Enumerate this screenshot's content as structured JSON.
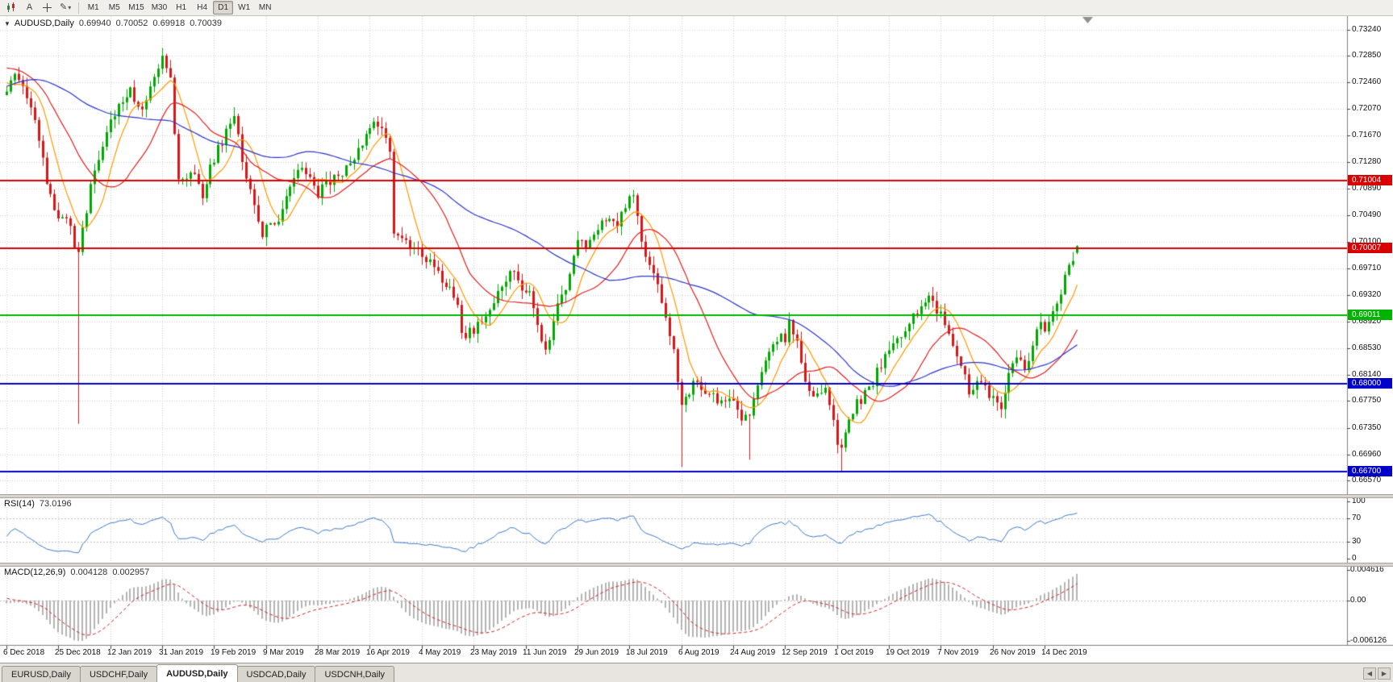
{
  "toolbar": {
    "text_tool_label": "A",
    "pencil_glyph": "✎",
    "caret_glyph": "▾",
    "timeframes": [
      "M1",
      "M5",
      "M15",
      "M30",
      "H1",
      "H4",
      "D1",
      "W1",
      "MN"
    ],
    "active_timeframe": "D1"
  },
  "chart": {
    "symbol_period": "AUDUSD,Daily",
    "collapse_glyph": "▼",
    "ohlc": {
      "open": "0.69940",
      "high": "0.70052",
      "low": "0.69918",
      "close": "0.70039"
    }
  },
  "indicators": {
    "rsi": {
      "label": "RSI(14)",
      "value": "73.0196",
      "scale_labels": [
        "100",
        "70",
        "30",
        "0"
      ],
      "levels": [
        70,
        30
      ],
      "color": "#3b78c8"
    },
    "macd": {
      "label": "MACD(12,26,9)",
      "value_main": "0.004128",
      "value_signal": "0.002957",
      "scale_labels": [
        "0.004616",
        "0.00",
        "-0.006126"
      ],
      "histogram_color": "#b4b4b4",
      "signal_color": "#d42020"
    }
  },
  "price_scale": {
    "labels": [
      "0.73240",
      "0.72850",
      "0.72460",
      "0.72070",
      "0.71670",
      "0.71280",
      "0.70890",
      "0.70490",
      "0.70100",
      "0.69710",
      "0.69320",
      "0.68920",
      "0.68530",
      "0.68140",
      "0.67750",
      "0.67350",
      "0.66960",
      "0.66570"
    ]
  },
  "hlines": [
    {
      "value": 0.71004,
      "label": "0.71004",
      "color": "#d80000"
    },
    {
      "value": 0.70007,
      "label": "0.70007",
      "color": "#d80000"
    },
    {
      "value": 0.69011,
      "label": "0.69011",
      "color": "#00b300"
    },
    {
      "value": 0.68,
      "label": "0.68000",
      "color": "#0000c8"
    },
    {
      "value": 0.667,
      "label": "0.66700",
      "color": "#0000c8"
    }
  ],
  "tabs": {
    "items": [
      "EURUSD,Daily",
      "USDCHF,Daily",
      "AUDUSD,Daily",
      "USDCAD,Daily",
      "USDCNH,Daily"
    ],
    "active": "AUDUSD,Daily"
  },
  "glyphs": {
    "scroll_left": "◀",
    "scroll_right": "▶"
  },
  "chart_data": {
    "type": "candlestick",
    "symbol": "AUDUSD",
    "timeframe": "Daily",
    "title": "AUDUSD,Daily 0.69940 0.70052 0.69918 0.70039",
    "ylim": [
      0.6637,
      0.7344
    ],
    "visible_candles": 269,
    "candles_per_tick": 13,
    "up_color": "#00a800",
    "down_color": "#d81818",
    "x_ticks": [
      {
        "i": 0,
        "label": "6 Dec 2018"
      },
      {
        "i": 13,
        "label": "25 Dec 2018"
      },
      {
        "i": 26,
        "label": "12 Jan 2019"
      },
      {
        "i": 39,
        "label": "31 Jan 2019"
      },
      {
        "i": 52,
        "label": "19 Feb 2019"
      },
      {
        "i": 65,
        "label": "9 Mar 2019"
      },
      {
        "i": 78,
        "label": "28 Mar 2019"
      },
      {
        "i": 91,
        "label": "16 Apr 2019"
      },
      {
        "i": 104,
        "label": "4 May 2019"
      },
      {
        "i": 117,
        "label": "23 May 2019"
      },
      {
        "i": 130,
        "label": "11 Jun 2019"
      },
      {
        "i": 143,
        "label": "29 Jun 2019"
      },
      {
        "i": 156,
        "label": "18 Jul 2019"
      },
      {
        "i": 169,
        "label": "6 Aug 2019"
      },
      {
        "i": 182,
        "label": "24 Aug 2019"
      },
      {
        "i": 195,
        "label": "12 Sep 2019"
      },
      {
        "i": 208,
        "label": "1 Oct 2019"
      },
      {
        "i": 221,
        "label": "19 Oct 2019"
      },
      {
        "i": 234,
        "label": "7 Nov 2019"
      },
      {
        "i": 247,
        "label": "26 Nov 2019"
      },
      {
        "i": 260,
        "label": "14 Dec 2019"
      }
    ],
    "preroll_anchors": [
      [
        -60,
        0.708
      ],
      [
        -50,
        0.716
      ],
      [
        -40,
        0.722
      ],
      [
        -30,
        0.729
      ],
      [
        -22,
        0.725
      ],
      [
        -15,
        0.73
      ],
      [
        -8,
        0.727
      ],
      [
        -1,
        0.7235
      ]
    ],
    "close_anchors": [
      [
        0,
        0.7225
      ],
      [
        2,
        0.7262
      ],
      [
        4,
        0.724
      ],
      [
        6,
        0.7205
      ],
      [
        8,
        0.7165
      ],
      [
        10,
        0.709
      ],
      [
        13,
        0.7048
      ],
      [
        15,
        0.7052
      ],
      [
        17,
        0.7005
      ],
      [
        18,
        0.6995
      ],
      [
        19,
        0.703
      ],
      [
        21,
        0.709
      ],
      [
        24,
        0.715
      ],
      [
        26,
        0.7185
      ],
      [
        28,
        0.721
      ],
      [
        31,
        0.7232
      ],
      [
        33,
        0.7205
      ],
      [
        35,
        0.7218
      ],
      [
        37,
        0.7248
      ],
      [
        39,
        0.729
      ],
      [
        41,
        0.7255
      ],
      [
        43,
        0.7095
      ],
      [
        46,
        0.7115
      ],
      [
        49,
        0.708
      ],
      [
        52,
        0.7135
      ],
      [
        55,
        0.717
      ],
      [
        57,
        0.7195
      ],
      [
        59,
        0.713
      ],
      [
        61,
        0.709
      ],
      [
        64,
        0.7025
      ],
      [
        66,
        0.704
      ],
      [
        68,
        0.7045
      ],
      [
        71,
        0.709
      ],
      [
        74,
        0.712
      ],
      [
        76,
        0.71
      ],
      [
        78,
        0.7082
      ],
      [
        81,
        0.71
      ],
      [
        84,
        0.7115
      ],
      [
        87,
        0.7135
      ],
      [
        90,
        0.7165
      ],
      [
        92,
        0.7195
      ],
      [
        94,
        0.7175
      ],
      [
        96,
        0.715
      ],
      [
        97,
        0.702
      ],
      [
        100,
        0.7005
      ],
      [
        103,
        0.6995
      ],
      [
        106,
        0.698
      ],
      [
        109,
        0.6955
      ],
      [
        111,
        0.694
      ],
      [
        113,
        0.692
      ],
      [
        114,
        0.6872
      ],
      [
        117,
        0.688
      ],
      [
        120,
        0.6905
      ],
      [
        123,
        0.693
      ],
      [
        126,
        0.6965
      ],
      [
        129,
        0.6945
      ],
      [
        131,
        0.693
      ],
      [
        133,
        0.688
      ],
      [
        135,
        0.6845
      ],
      [
        138,
        0.692
      ],
      [
        140,
        0.6945
      ],
      [
        143,
        0.7015
      ],
      [
        145,
        0.7
      ],
      [
        148,
        0.703
      ],
      [
        151,
        0.705
      ],
      [
        153,
        0.704
      ],
      [
        156,
        0.707
      ],
      [
        157,
        0.7075
      ],
      [
        159,
        0.7015
      ],
      [
        161,
        0.6975
      ],
      [
        163,
        0.695
      ],
      [
        165,
        0.6905
      ],
      [
        167,
        0.6845
      ],
      [
        168,
        0.68
      ],
      [
        169,
        0.677
      ],
      [
        171,
        0.679
      ],
      [
        173,
        0.6805
      ],
      [
        176,
        0.6785
      ],
      [
        179,
        0.6775
      ],
      [
        182,
        0.677
      ],
      [
        184,
        0.674
      ],
      [
        186,
        0.676
      ],
      [
        188,
        0.6795
      ],
      [
        190,
        0.683
      ],
      [
        193,
        0.687
      ],
      [
        195,
        0.6865
      ],
      [
        196,
        0.689
      ],
      [
        198,
        0.687
      ],
      [
        200,
        0.68
      ],
      [
        202,
        0.678
      ],
      [
        205,
        0.679
      ],
      [
        207,
        0.675
      ],
      [
        208,
        0.6715
      ],
      [
        209,
        0.67
      ],
      [
        211,
        0.6755
      ],
      [
        213,
        0.677
      ],
      [
        216,
        0.679
      ],
      [
        219,
        0.683
      ],
      [
        222,
        0.6855
      ],
      [
        225,
        0.688
      ],
      [
        228,
        0.6905
      ],
      [
        231,
        0.6925
      ],
      [
        233,
        0.691
      ],
      [
        235,
        0.689
      ],
      [
        237,
        0.686
      ],
      [
        239,
        0.683
      ],
      [
        241,
        0.679
      ],
      [
        243,
        0.6805
      ],
      [
        245,
        0.6795
      ],
      [
        247,
        0.6775
      ],
      [
        249,
        0.6765
      ],
      [
        251,
        0.682
      ],
      [
        253,
        0.6845
      ],
      [
        255,
        0.682
      ],
      [
        257,
        0.6855
      ],
      [
        259,
        0.6895
      ],
      [
        260,
        0.688
      ],
      [
        262,
        0.69
      ],
      [
        264,
        0.694
      ],
      [
        266,
        0.6975
      ],
      [
        268,
        0.70039
      ]
    ],
    "candle_overrides": {
      "18": {
        "l": 0.6741
      },
      "39": {
        "h": 0.7297
      },
      "169": {
        "l": 0.6677
      },
      "186": {
        "l": 0.6688
      },
      "209": {
        "l": 0.667
      },
      "268": {
        "o": 0.6994,
        "h": 0.70052,
        "l": 0.69918,
        "c": 0.70039
      }
    },
    "moving_averages": [
      {
        "period": 8,
        "color": "#ff9900"
      },
      {
        "period": 20,
        "color": "#e02020"
      },
      {
        "period": 55,
        "color": "#2a35c8"
      }
    ],
    "rsi_period": 14,
    "rsi_current": 73.0196,
    "macd_params": [
      12,
      26,
      9
    ],
    "macd_current": [
      0.004128,
      0.002957
    ],
    "macd_ylim": [
      -0.006126,
      0.004616
    ],
    "horizontal_line_values": [
      0.71004,
      0.70007,
      0.69011,
      0.68,
      0.667
    ]
  }
}
